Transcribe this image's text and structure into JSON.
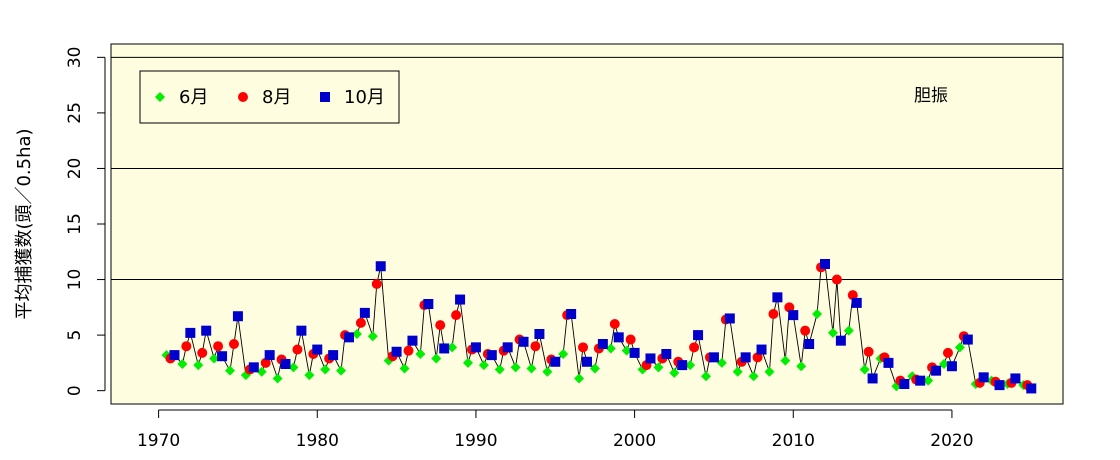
{
  "chart_data": {
    "type": "line",
    "title": "",
    "xlabel": "",
    "ylabel": "平均捕獲数(頭／0.5ha)",
    "annotation": "胆振",
    "xlim": [
      1967,
      2027
    ],
    "ylim": [
      -1.2,
      31.2
    ],
    "xticks": [
      1970,
      1980,
      1990,
      2000,
      2010,
      2020
    ],
    "yticks": [
      0,
      5,
      10,
      15,
      20,
      25,
      30
    ],
    "hlines": [
      10,
      20,
      30
    ],
    "background": "#fffde0",
    "legend_position": "top-left",
    "legend": [
      "6月",
      "8月",
      "10月"
    ],
    "series": [
      {
        "name": "6月",
        "color": "#00ee00",
        "marker": "diamond",
        "points": [
          [
            1970.5,
            3.2
          ],
          [
            1971.5,
            2.4
          ],
          [
            1972.5,
            2.3
          ],
          [
            1973.5,
            2.9
          ],
          [
            1974.5,
            1.8
          ],
          [
            1975.5,
            1.4
          ],
          [
            1976.5,
            1.7
          ],
          [
            1977.5,
            1.1
          ],
          [
            1978.5,
            2.1
          ],
          [
            1979.5,
            1.4
          ],
          [
            1980.5,
            1.9
          ],
          [
            1981.5,
            1.8
          ],
          [
            1982.5,
            5.1
          ],
          [
            1983.5,
            4.9
          ],
          [
            1984.5,
            2.7
          ],
          [
            1985.5,
            2.0
          ],
          [
            1986.5,
            3.3
          ],
          [
            1987.5,
            2.9
          ],
          [
            1988.5,
            3.9
          ],
          [
            1989.5,
            2.5
          ],
          [
            1990.5,
            2.3
          ],
          [
            1991.5,
            1.9
          ],
          [
            1992.5,
            2.1
          ],
          [
            1993.5,
            2.0
          ],
          [
            1994.5,
            1.7
          ],
          [
            1995.5,
            3.3
          ],
          [
            1996.5,
            1.1
          ],
          [
            1997.5,
            2.0
          ],
          [
            1998.5,
            3.8
          ],
          [
            1999.5,
            3.6
          ],
          [
            2000.5,
            1.9
          ],
          [
            2001.5,
            2.1
          ],
          [
            2002.5,
            1.6
          ],
          [
            2003.5,
            2.3
          ],
          [
            2004.5,
            1.3
          ],
          [
            2005.5,
            2.5
          ],
          [
            2006.5,
            1.7
          ],
          [
            2007.5,
            1.3
          ],
          [
            2008.5,
            1.7
          ],
          [
            2009.5,
            2.7
          ],
          [
            2010.5,
            2.2
          ],
          [
            2011.5,
            6.9
          ],
          [
            2012.5,
            5.2
          ],
          [
            2013.5,
            5.4
          ],
          [
            2014.5,
            1.9
          ],
          [
            2015.5,
            2.9
          ],
          [
            2016.5,
            0.4
          ],
          [
            2017.5,
            1.3
          ],
          [
            2018.5,
            0.9
          ],
          [
            2019.5,
            2.4
          ],
          [
            2020.5,
            3.9
          ],
          [
            2021.5,
            0.6
          ],
          [
            2022.5,
            0.9
          ],
          [
            2023.5,
            0.6
          ],
          [
            2024.5,
            0.5
          ]
        ]
      },
      {
        "name": "8月",
        "color": "#ff0000",
        "marker": "circle",
        "points": [
          [
            1970.75,
            2.9
          ],
          [
            1971.75,
            4.0
          ],
          [
            1972.75,
            3.4
          ],
          [
            1973.75,
            4.0
          ],
          [
            1974.75,
            4.2
          ],
          [
            1975.75,
            1.9
          ],
          [
            1976.75,
            2.5
          ],
          [
            1977.75,
            2.8
          ],
          [
            1978.75,
            3.7
          ],
          [
            1979.75,
            3.3
          ],
          [
            1980.75,
            2.9
          ],
          [
            1981.75,
            5.0
          ],
          [
            1982.75,
            6.1
          ],
          [
            1983.75,
            9.6
          ],
          [
            1984.75,
            3.1
          ],
          [
            1985.75,
            3.6
          ],
          [
            1986.75,
            7.7
          ],
          [
            1987.75,
            5.9
          ],
          [
            1988.75,
            6.8
          ],
          [
            1989.75,
            3.7
          ],
          [
            1990.75,
            3.3
          ],
          [
            1991.75,
            3.6
          ],
          [
            1992.75,
            4.6
          ],
          [
            1993.75,
            4.0
          ],
          [
            1994.75,
            2.8
          ],
          [
            1995.75,
            6.8
          ],
          [
            1996.75,
            3.9
          ],
          [
            1997.75,
            3.8
          ],
          [
            1998.75,
            6.0
          ],
          [
            1999.75,
            4.6
          ],
          [
            2000.75,
            2.3
          ],
          [
            2001.75,
            2.9
          ],
          [
            2002.75,
            2.6
          ],
          [
            2003.75,
            3.9
          ],
          [
            2004.75,
            3.0
          ],
          [
            2005.75,
            6.4
          ],
          [
            2006.75,
            2.6
          ],
          [
            2007.75,
            3.0
          ],
          [
            2008.75,
            6.9
          ],
          [
            2009.75,
            7.5
          ],
          [
            2010.75,
            5.4
          ],
          [
            2011.75,
            11.1
          ],
          [
            2012.75,
            10.0
          ],
          [
            2013.75,
            8.6
          ],
          [
            2014.75,
            3.5
          ],
          [
            2015.75,
            3.0
          ],
          [
            2016.75,
            0.9
          ],
          [
            2017.75,
            1.0
          ],
          [
            2018.75,
            2.1
          ],
          [
            2019.75,
            3.4
          ],
          [
            2020.75,
            4.9
          ],
          [
            2021.75,
            0.7
          ],
          [
            2022.75,
            0.8
          ],
          [
            2023.75,
            0.7
          ],
          [
            2024.75,
            0.5
          ]
        ]
      },
      {
        "name": "10月",
        "color": "#0000cc",
        "marker": "square",
        "points": [
          [
            1971.0,
            3.2
          ],
          [
            1972.0,
            5.2
          ],
          [
            1973.0,
            5.4
          ],
          [
            1974.0,
            3.1
          ],
          [
            1975.0,
            6.7
          ],
          [
            1976.0,
            2.1
          ],
          [
            1977.0,
            3.2
          ],
          [
            1978.0,
            2.4
          ],
          [
            1979.0,
            5.4
          ],
          [
            1980.0,
            3.7
          ],
          [
            1981.0,
            3.2
          ],
          [
            1982.0,
            4.8
          ],
          [
            1983.0,
            7.0
          ],
          [
            1984.0,
            11.2
          ],
          [
            1985.0,
            3.5
          ],
          [
            1986.0,
            4.5
          ],
          [
            1987.0,
            7.8
          ],
          [
            1988.0,
            3.8
          ],
          [
            1989.0,
            8.2
          ],
          [
            1990.0,
            3.9
          ],
          [
            1991.0,
            3.2
          ],
          [
            1992.0,
            3.9
          ],
          [
            1993.0,
            4.4
          ],
          [
            1994.0,
            5.1
          ],
          [
            1995.0,
            2.6
          ],
          [
            1996.0,
            6.9
          ],
          [
            1997.0,
            2.6
          ],
          [
            1998.0,
            4.2
          ],
          [
            1999.0,
            4.8
          ],
          [
            2000.0,
            3.4
          ],
          [
            2001.0,
            2.9
          ],
          [
            2002.0,
            3.3
          ],
          [
            2003.0,
            2.3
          ],
          [
            2004.0,
            5.0
          ],
          [
            2005.0,
            3.0
          ],
          [
            2006.0,
            6.5
          ],
          [
            2007.0,
            3.0
          ],
          [
            2008.0,
            3.7
          ],
          [
            2009.0,
            8.4
          ],
          [
            2010.0,
            6.8
          ],
          [
            2011.0,
            4.2
          ],
          [
            2012.0,
            11.4
          ],
          [
            2013.0,
            4.5
          ],
          [
            2014.0,
            7.9
          ],
          [
            2015.0,
            1.1
          ],
          [
            2016.0,
            2.5
          ],
          [
            2017.0,
            0.6
          ],
          [
            2018.0,
            0.9
          ],
          [
            2019.0,
            1.8
          ],
          [
            2020.0,
            2.2
          ],
          [
            2021.0,
            4.6
          ],
          [
            2022.0,
            1.2
          ],
          [
            2023.0,
            0.5
          ],
          [
            2024.0,
            1.1
          ],
          [
            2025.0,
            0.2
          ]
        ]
      }
    ]
  }
}
